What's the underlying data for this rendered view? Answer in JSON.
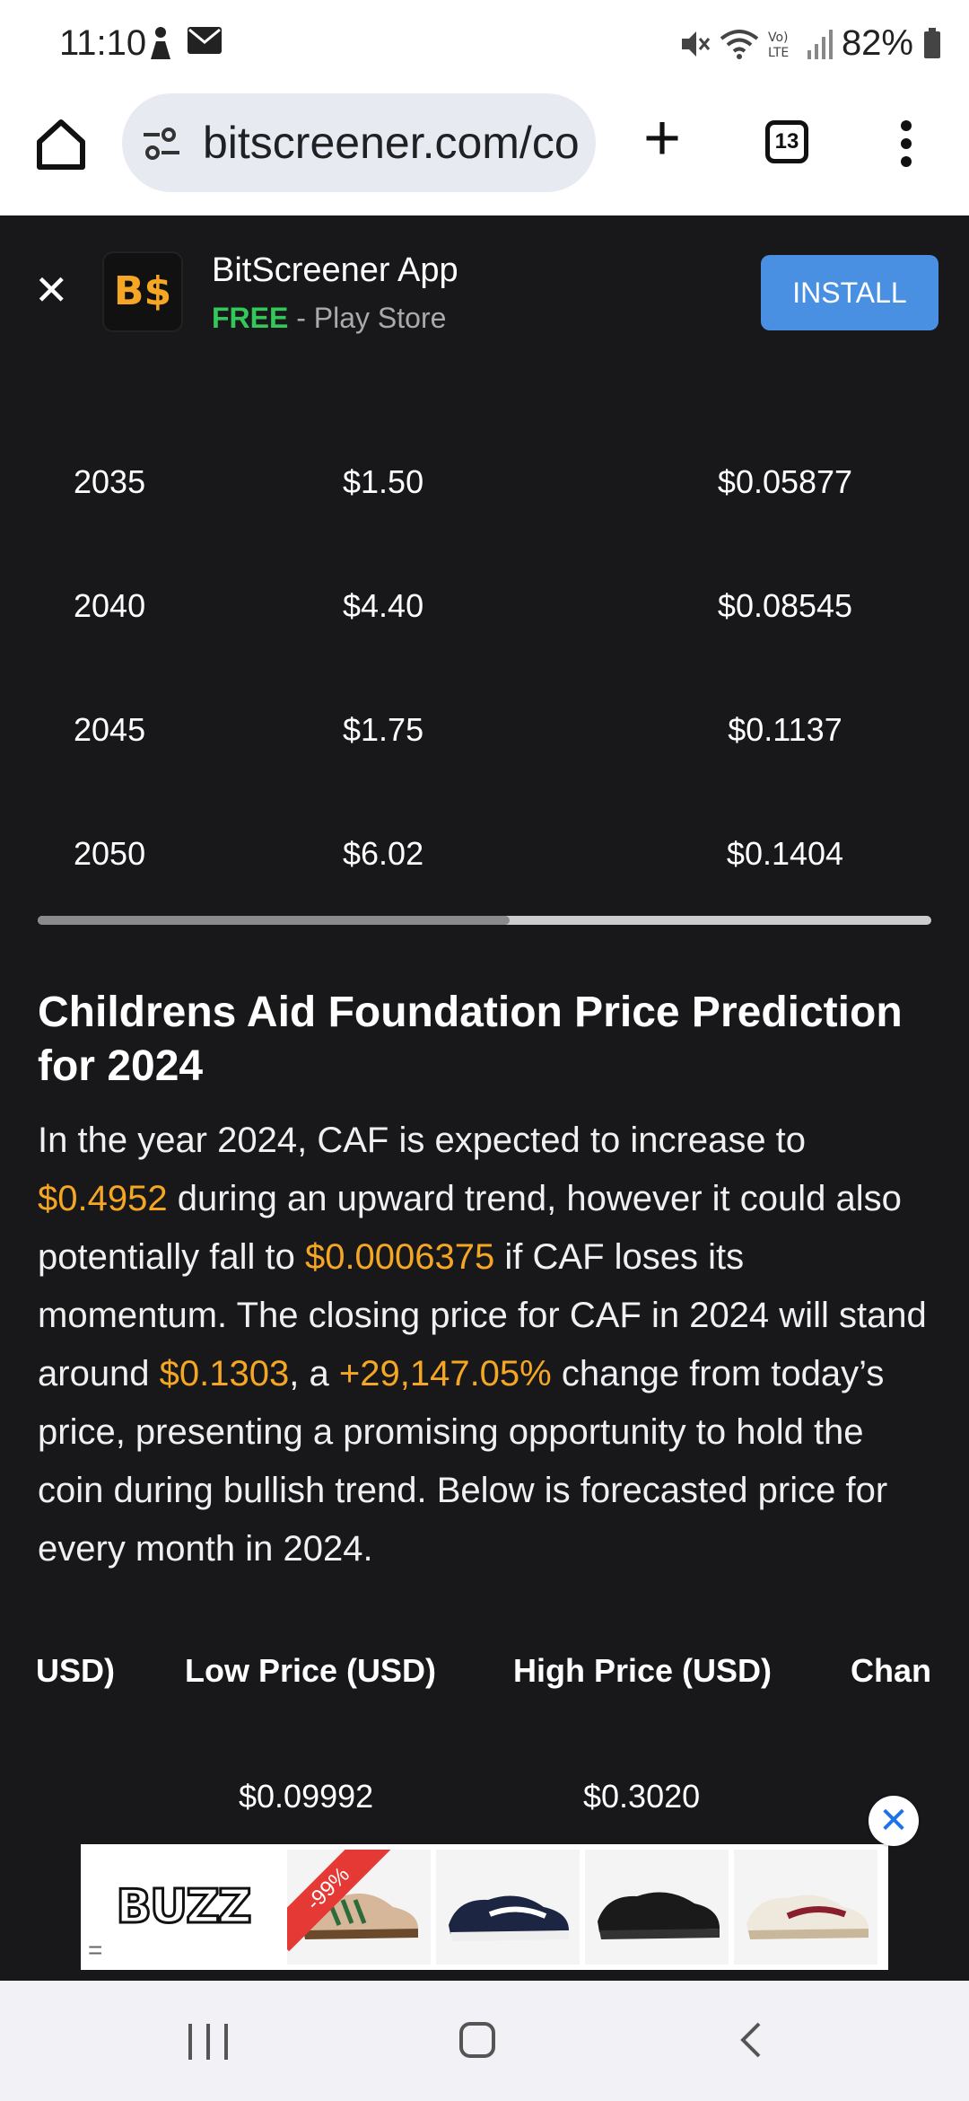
{
  "status_bar": {
    "time": "11:10",
    "battery": "82%",
    "icons": [
      "figure-icon",
      "mail-icon",
      "mute-icon",
      "wifi-icon",
      "volte-icon",
      "signal-icon",
      "battery-icon"
    ]
  },
  "browser": {
    "url": "bitscreener.com/co",
    "tab_count": "13"
  },
  "app_banner": {
    "title": "BitScreener App",
    "logo_text": "B$",
    "free_label": "FREE",
    "store_label": " - Play Store",
    "install_label": "INSTALL"
  },
  "prediction_table": {
    "rows": [
      {
        "year": "2035",
        "high": "$1.50",
        "low": "$0.05877"
      },
      {
        "year": "2040",
        "high": "$4.40",
        "low": "$0.08545"
      },
      {
        "year": "2045",
        "high": "$1.75",
        "low": "$0.1137"
      },
      {
        "year": "2050",
        "high": "$6.02",
        "low": "$0.1404"
      }
    ]
  },
  "article": {
    "title": "Childrens Aid Foundation Price Prediction for 2024",
    "p1": "In the year 2024, CAF is expected to increase to ",
    "v1": "$0.4952",
    "p2": " during an upward trend, however it could also potentially fall to ",
    "v2": "$0.0006375",
    "p3": " if CAF loses its momentum. The closing price for CAF in 2024 will stand around ",
    "v3": "$0.1303",
    "p4": ", a ",
    "v4": "+29,147.05%",
    "p5": " change from today’s price, presenting a promising opportunity to hold the coin during bullish trend. Below is forecasted price for every month in 2024."
  },
  "monthly_table": {
    "headers": [
      "USD)",
      "Low Price (USD)",
      "High Price (USD)",
      "Chan"
    ],
    "first_row": {
      "low": "$0.09992",
      "high": "$0.3020"
    }
  },
  "ad": {
    "brand": "BUZZ",
    "discount": "-99%",
    "close_glyph": "✕"
  },
  "colors": {
    "accent": "#f5a623",
    "install": "#4a90e2",
    "free": "#34c759",
    "background": "#18181b"
  }
}
